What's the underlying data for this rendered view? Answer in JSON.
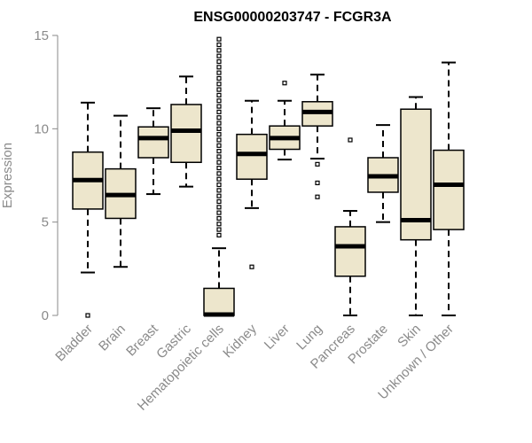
{
  "chart_data": {
    "type": "box",
    "title": "ENSG00000203747 - FCGR3A",
    "xlabel": "",
    "ylabel": "Expression",
    "ylim": [
      0,
      15
    ],
    "yticks": [
      0,
      5,
      10,
      15
    ],
    "box_fill": "#ede6cc",
    "categories": [
      "Bladder",
      "Brain",
      "Breast",
      "Gastric",
      "Hematopoietic cells",
      "Kidney",
      "Liver",
      "Lung",
      "Pancreas",
      "Prostate",
      "Skin",
      "Unknown / Other"
    ],
    "series": [
      {
        "name": "Bladder",
        "whisker_low": 2.3,
        "q1": 5.7,
        "median": 7.25,
        "q3": 8.75,
        "whisker_high": 11.4,
        "outliers": [
          0.0
        ]
      },
      {
        "name": "Brain",
        "whisker_low": 2.6,
        "q1": 5.2,
        "median": 6.45,
        "q3": 7.85,
        "whisker_high": 10.7,
        "outliers": []
      },
      {
        "name": "Breast",
        "whisker_low": 6.5,
        "q1": 8.45,
        "median": 9.5,
        "q3": 10.1,
        "whisker_high": 11.1,
        "outliers": []
      },
      {
        "name": "Gastric",
        "whisker_low": 6.9,
        "q1": 8.2,
        "median": 9.9,
        "q3": 11.3,
        "whisker_high": 12.8,
        "outliers": []
      },
      {
        "name": "Hematopoietic cells",
        "whisker_low": 0.0,
        "q1": 0.0,
        "median": 0.05,
        "q3": 1.45,
        "whisker_high": 3.6,
        "outliers": [
          4.3,
          4.6,
          4.9,
          5.2,
          5.5,
          5.8,
          6.1,
          6.4,
          6.7,
          7.0,
          7.3,
          7.6,
          7.9,
          8.2,
          8.5,
          8.8,
          9.1,
          9.4,
          9.7,
          10.0,
          10.3,
          10.6,
          10.9,
          11.2,
          11.5,
          11.8,
          12.1,
          12.4,
          12.7,
          13.0,
          13.3,
          13.6,
          13.9,
          14.2,
          14.5,
          14.8
        ]
      },
      {
        "name": "Kidney",
        "whisker_low": 5.75,
        "q1": 7.3,
        "median": 8.65,
        "q3": 9.7,
        "whisker_high": 11.5,
        "outliers": [
          2.6
        ]
      },
      {
        "name": "Liver",
        "whisker_low": 8.35,
        "q1": 8.9,
        "median": 9.5,
        "q3": 10.15,
        "whisker_high": 11.5,
        "outliers": [
          12.45
        ]
      },
      {
        "name": "Lung",
        "whisker_low": 8.4,
        "q1": 10.15,
        "median": 10.9,
        "q3": 11.45,
        "whisker_high": 12.9,
        "outliers": [
          8.1,
          7.1,
          6.35
        ]
      },
      {
        "name": "Pancreas",
        "whisker_low": 0.0,
        "q1": 2.1,
        "median": 3.7,
        "q3": 4.75,
        "whisker_high": 5.6,
        "outliers": [
          9.4
        ]
      },
      {
        "name": "Prostate",
        "whisker_low": 5.0,
        "q1": 6.6,
        "median": 7.45,
        "q3": 8.45,
        "whisker_high": 10.2,
        "outliers": []
      },
      {
        "name": "Skin",
        "whisker_low": 0.0,
        "q1": 4.05,
        "median": 5.1,
        "q3": 11.05,
        "whisker_high": 11.7,
        "outliers": []
      },
      {
        "name": "Unknown / Other",
        "whisker_low": 0.0,
        "q1": 4.6,
        "median": 7.0,
        "q3": 8.85,
        "whisker_high": 13.55,
        "outliers": []
      }
    ]
  }
}
